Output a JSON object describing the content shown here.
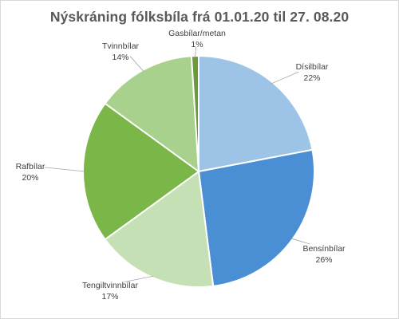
{
  "chart_data": {
    "type": "pie",
    "title": "Nýskráning fólksbíla frá 01.01.20 til 27. 08.20",
    "categories": [
      "Dísilbílar",
      "Bensínbílar",
      "Tengiltvinnbílar",
      "Rafbílar",
      "Tvinnbílar",
      "Gasbílar/metan"
    ],
    "values": [
      22,
      26,
      17,
      20,
      14,
      1
    ],
    "labels": [
      "22%",
      "26%",
      "17%",
      "20%",
      "14%",
      "1%"
    ],
    "colors": [
      "#9dc3e6",
      "#4a8fd4",
      "#c5e0b4",
      "#7ab648",
      "#a9d18e",
      "#6a9a3a"
    ]
  }
}
